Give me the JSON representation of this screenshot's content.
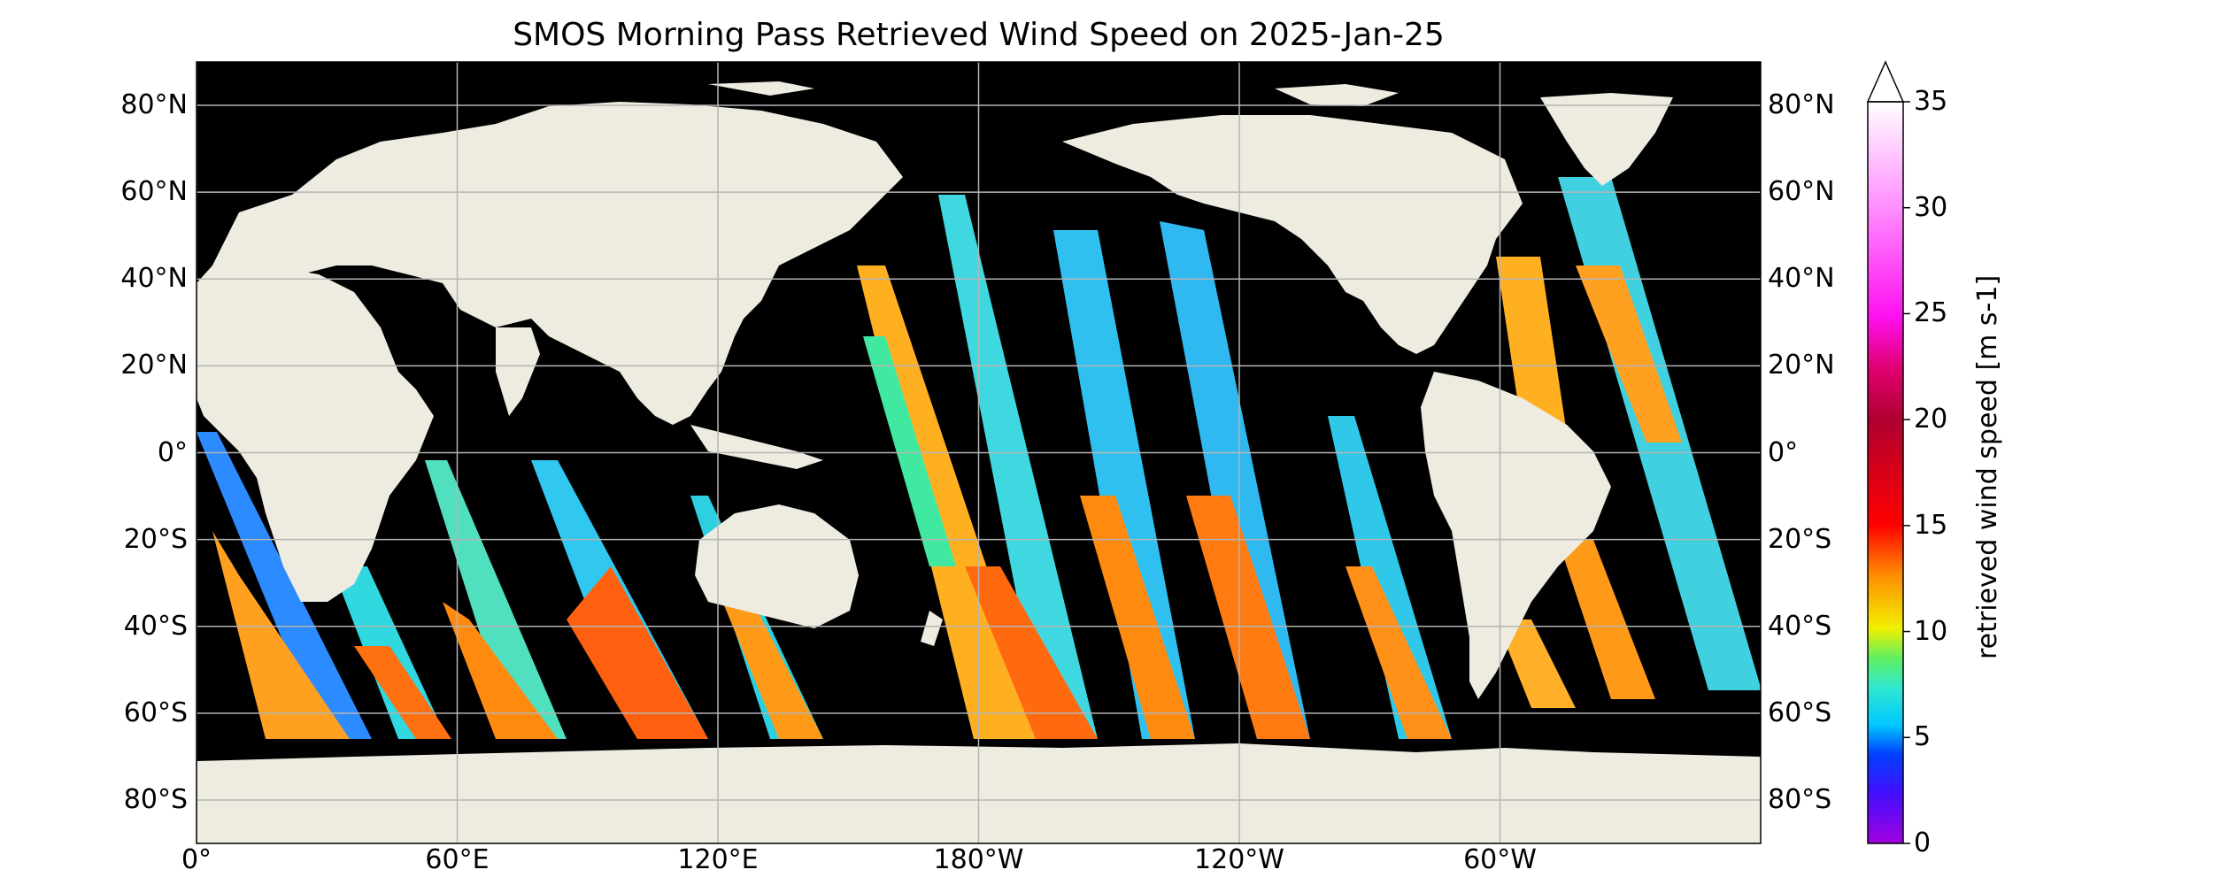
{
  "title": "SMOS Morning Pass Retrieved Wind Speed on 2025-Jan-25",
  "lat_ticks": [
    "80°N",
    "60°N",
    "40°N",
    "20°N",
    "0°",
    "20°S",
    "40°S",
    "60°S",
    "80°S"
  ],
  "lat_values": [
    80,
    60,
    40,
    20,
    0,
    -20,
    -40,
    -60,
    -80
  ],
  "lon_ticks": [
    "0°",
    "60°E",
    "120°E",
    "180°W",
    "120°W",
    "60°W"
  ],
  "lon_values": [
    0,
    60,
    120,
    180,
    240,
    300
  ],
  "colorbar": {
    "label": "retrieved wind speed [m s-1]",
    "ticks": [
      "0",
      "5",
      "10",
      "15",
      "20",
      "25",
      "30",
      "35"
    ],
    "min": 0,
    "max": 35,
    "extend": "max"
  },
  "colors": {
    "ocean_nodata": "#000000",
    "land": "#eeece0",
    "grid": "#b5b5b5"
  }
}
